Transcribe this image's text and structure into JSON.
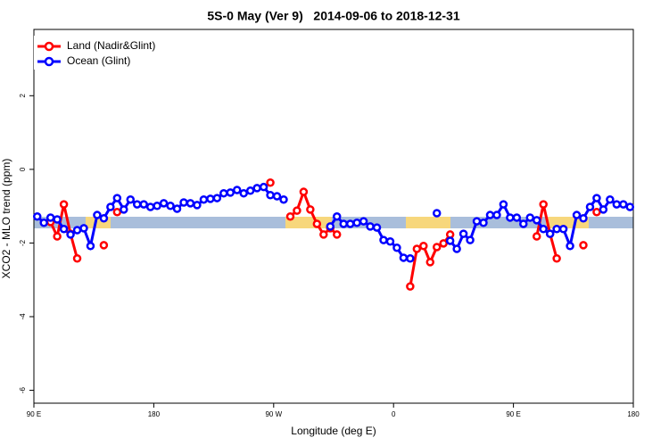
{
  "chart_data": {
    "type": "line",
    "title": "5S-0 May (Ver 9)   2014-09-06 to 2018-12-31",
    "x_label": "Longitude (deg E)",
    "y_label": "XCO2 - MLO trend (ppm)",
    "xlim": [
      90,
      540
    ],
    "ylim": [
      -6.35,
      3.8
    ],
    "xticks": [
      {
        "value": 90,
        "label": "90 E"
      },
      {
        "value": 180,
        "label": "180"
      },
      {
        "value": 270,
        "label": "90 W"
      },
      {
        "value": 360,
        "label": "0"
      },
      {
        "value": 450,
        "label": "90 E"
      },
      {
        "value": 540,
        "label": "180"
      }
    ],
    "yticks": [
      -6,
      -4,
      -2,
      0,
      2
    ],
    "legend": "top-left",
    "x": [
      92.5,
      97.5,
      102.5,
      107.5,
      112.5,
      117.5,
      122.5,
      127.5,
      132.5,
      137.5,
      142.5,
      147.5,
      152.5,
      157.5,
      162.5,
      167.5,
      172.5,
      177.5,
      182.5,
      187.5,
      192.5,
      197.5,
      202.5,
      207.5,
      212.5,
      217.5,
      222.5,
      227.5,
      232.5,
      237.5,
      242.5,
      247.5,
      252.5,
      257.5,
      262.5,
      267.5,
      272.5,
      277.5,
      282.5,
      287.5,
      292.5,
      297.5,
      302.5,
      307.5,
      312.5,
      317.5,
      322.5,
      327.5,
      332.5,
      337.5,
      342.5,
      347.5,
      352.5,
      357.5,
      362.5,
      367.5,
      372.5,
      377.5,
      382.5,
      387.5,
      392.5,
      397.5,
      402.5,
      407.5,
      412.5,
      417.5,
      422.5,
      427.5,
      432.5,
      437.5,
      442.5,
      447.5,
      452.5,
      457.5,
      462.5,
      467.5,
      472.5,
      477.5,
      482.5,
      487.5,
      492.5,
      497.5,
      502.5,
      507.5,
      512.5,
      517.5,
      522.5,
      527.5,
      532.5,
      537.5
    ],
    "series": [
      {
        "name": "Land (Nadir&Glint)",
        "color": "#ff0000",
        "values": [
          null,
          null,
          -1.43,
          -1.82,
          -0.95,
          -1.75,
          -2.42,
          null,
          null,
          null,
          -2.06,
          null,
          -1.16,
          null,
          null,
          null,
          null,
          null,
          null,
          null,
          null,
          null,
          null,
          null,
          null,
          null,
          null,
          null,
          null,
          null,
          null,
          null,
          null,
          null,
          null,
          -0.36,
          null,
          null,
          -1.28,
          -1.12,
          -0.61,
          -1.09,
          -1.48,
          -1.77,
          -1.6,
          -1.77,
          null,
          null,
          null,
          null,
          null,
          null,
          null,
          null,
          null,
          null,
          -3.18,
          -2.16,
          -2.08,
          -2.52,
          -2.11,
          -2.01,
          -1.77,
          null,
          null,
          null,
          null,
          null,
          null,
          null,
          null,
          null,
          null,
          null,
          null,
          -1.82,
          -0.95,
          -1.75,
          -2.42,
          null,
          null,
          null,
          -2.06,
          null,
          -1.16,
          null,
          null,
          null,
          null,
          null
        ]
      },
      {
        "name": "Ocean (Glint)",
        "color": "#0000ff",
        "values": [
          -1.28,
          -1.45,
          -1.31,
          -1.36,
          -1.62,
          -1.77,
          -1.65,
          -1.6,
          -2.08,
          -1.24,
          -1.33,
          -1.02,
          -0.78,
          -1.09,
          -0.82,
          -0.95,
          -0.95,
          -1.02,
          -0.99,
          -0.92,
          -0.99,
          -1.07,
          -0.9,
          -0.92,
          -0.97,
          -0.82,
          -0.8,
          -0.78,
          -0.65,
          -0.63,
          -0.56,
          -0.65,
          -0.58,
          -0.51,
          -0.48,
          -0.7,
          -0.73,
          -0.82,
          null,
          null,
          null,
          null,
          null,
          null,
          -1.55,
          -1.28,
          -1.48,
          -1.48,
          -1.45,
          -1.41,
          -1.55,
          -1.58,
          -1.92,
          -1.96,
          -2.13,
          -2.4,
          -2.42,
          null,
          null,
          null,
          -1.19,
          null,
          -1.94,
          -2.16,
          -1.75,
          -1.92,
          -1.41,
          -1.45,
          -1.24,
          -1.24,
          -0.95,
          -1.31,
          -1.31,
          -1.48,
          -1.31,
          -1.38,
          -1.62,
          -1.75,
          -1.62,
          -1.62,
          -2.08,
          -1.24,
          -1.33,
          -1.02,
          -0.78,
          -1.09,
          -0.82,
          -0.95,
          -0.95,
          -1.02
        ]
      }
    ]
  }
}
